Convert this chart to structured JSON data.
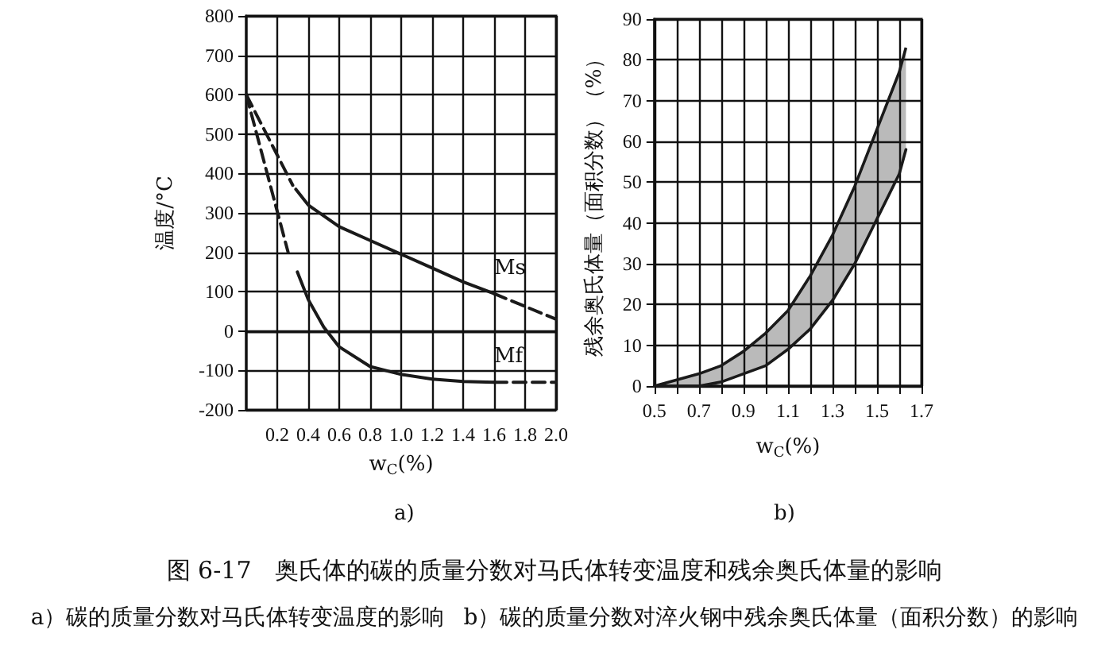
{
  "chart_data": [
    {
      "type": "line",
      "subtitle": "a)",
      "xlabel": "w$_{C}$(%)",
      "ylabel": "温度/°C",
      "xlim": [
        0,
        2.0
      ],
      "ylim": [
        -200,
        800
      ],
      "xticks": [
        0.2,
        0.4,
        0.6,
        0.8,
        {
          "value": 1,
          "label": "1.0"
        },
        1.2,
        1.4,
        1.6,
        1.8,
        {
          "value": 2,
          "label": "2.0"
        }
      ],
      "yticks": [
        -200,
        -100,
        0,
        100,
        200,
        300,
        400,
        500,
        600,
        700,
        800
      ],
      "grid": true,
      "marker": "none",
      "legend": false,
      "series": [
        {
          "name": "Ms",
          "color": "#1a1a1a",
          "x": [
            0.32,
            0.4,
            0.6,
            0.8,
            1.0,
            1.2,
            1.4,
            1.6
          ],
          "values": [
            360,
            320,
            265,
            230,
            195,
            160,
            125,
            95
          ]
        },
        {
          "color": "#1a1a1a",
          "line_style": "dashed",
          "x": [
            0,
            0.3
          ],
          "values": [
            600,
            370
          ]
        },
        {
          "color": "#1a1a1a",
          "line_style": "dashed",
          "x": [
            1.6,
            2.0
          ],
          "values": [
            95,
            30
          ]
        },
        {
          "name": "Mf",
          "color": "#1a1a1a",
          "x": [
            0.33,
            0.4,
            0.5,
            0.6,
            0.8,
            1.0,
            1.2,
            1.4,
            1.6
          ],
          "values": [
            150,
            80,
            10,
            -40,
            -90,
            -110,
            -122,
            -128,
            -130
          ]
        },
        {
          "color": "#1a1a1a",
          "line_style": "dashed",
          "x": [
            0,
            0.27
          ],
          "values": [
            600,
            200
          ]
        },
        {
          "color": "#1a1a1a",
          "line_style": "dashed",
          "x": [
            1.6,
            2.0
          ],
          "values": [
            -130,
            -130
          ]
        }
      ],
      "annotations": [
        "图 6-17　奥氏体的碳的质量分数对马氏体转变温度和残余奥氏体量的影响",
        "a）碳的质量分数对马氏体转变温度的影响"
      ]
    },
    {
      "type": "area",
      "subtitle": "b)",
      "xlabel": "w$_{C}$(%)",
      "ylabel": "残余奥氏体量（面积分数）（%）",
      "xlim": [
        0.5,
        1.7
      ],
      "ylim": [
        0,
        90
      ],
      "xticks": [
        0.5,
        {
          "value": 0.6,
          "label": null
        },
        0.7,
        {
          "value": 0.8,
          "label": null
        },
        0.9,
        {
          "value": 1.0,
          "label": null
        },
        1.1,
        {
          "value": 1.2,
          "label": null
        },
        1.3,
        {
          "value": 1.4,
          "label": null
        },
        1.5,
        {
          "value": 1.6,
          "label": null
        },
        1.7
      ],
      "yticks": [
        0,
        10,
        20,
        30,
        40,
        50,
        60,
        70,
        80,
        90
      ],
      "grid": true,
      "legend": false,
      "series": [
        {
          "color": "#1a1a1a",
          "x": [
            0.5,
            0.6,
            0.7,
            0.8,
            0.9,
            1.0,
            1.1,
            1.2,
            1.3,
            1.4,
            1.5,
            1.6,
            1.63
          ],
          "values": [
            0,
            1.5,
            3,
            5,
            8.5,
            13,
            18.5,
            27,
            37,
            49,
            63,
            77,
            83
          ]
        },
        {
          "type": "line",
          "color": "#1a1a1a",
          "x": [
            0.5,
            0.6,
            0.7,
            0.8,
            0.9,
            1.0,
            1.1,
            1.2,
            1.3,
            1.4,
            1.5,
            1.6,
            1.63
          ],
          "values": [
            0,
            0,
            0,
            1,
            3,
            5,
            9,
            14,
            21,
            30,
            41,
            52,
            58
          ]
        }
      ],
      "annotations": [
        "b）碳的质量分数对淬火钢中残余奥氏体量（面积分数）的影响"
      ]
    }
  ]
}
